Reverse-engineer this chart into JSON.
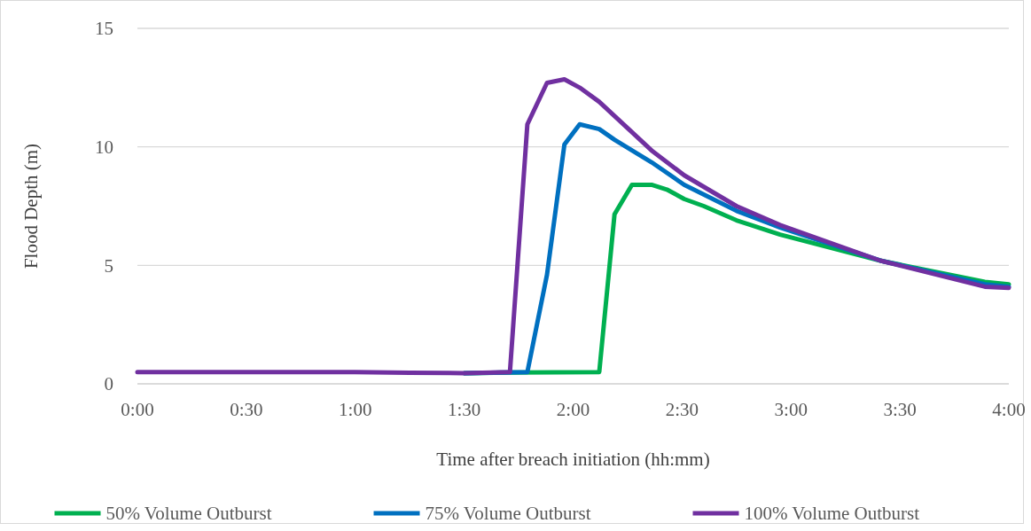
{
  "chart_data": {
    "type": "line",
    "xlabel": "Time after breach initiation (hh:mm)",
    "ylabel": "Flood Depth (m)",
    "xlim": [
      0,
      4
    ],
    "xticks": [
      {
        "value": 0,
        "label": "0:00"
      },
      {
        "value": 0.5,
        "label": "0:30"
      },
      {
        "value": 1,
        "label": "1:00"
      },
      {
        "value": 1.5,
        "label": "1:30"
      },
      {
        "value": 2,
        "label": "2:00"
      },
      {
        "value": 2.5,
        "label": "2:30"
      },
      {
        "value": 3,
        "label": "3:00"
      },
      {
        "value": 3.5,
        "label": "3:30"
      },
      {
        "value": 4,
        "label": "4:00"
      }
    ],
    "ylim": [
      0,
      15
    ],
    "yticks": [
      0,
      5,
      10,
      15
    ],
    "grid": "y",
    "legend": "bottom",
    "marker": "none",
    "line_style": "solid",
    "series": [
      {
        "name": "50% Volume Outburst",
        "color": "#00b050",
        "x": [
          1.5,
          1.71,
          2.12,
          2.19,
          2.27,
          2.36,
          2.43,
          2.51,
          2.6,
          2.75,
          2.95,
          3.41,
          3.89,
          4
        ],
        "values": [
          0.45,
          0.48,
          0.5,
          7.15,
          8.4,
          8.4,
          8.2,
          7.8,
          7.5,
          6.9,
          6.3,
          5.2,
          4.3,
          4.2
        ]
      },
      {
        "name": "75% Volume Outburst",
        "color": "#0070c0",
        "x": [
          1.5,
          1.79,
          1.88,
          1.96,
          2.03,
          2.12,
          2.19,
          2.36,
          2.51,
          2.75,
          2.95,
          3.41,
          3.89,
          4
        ],
        "values": [
          0.45,
          0.5,
          4.6,
          10.1,
          10.95,
          10.75,
          10.3,
          9.35,
          8.4,
          7.3,
          6.6,
          5.2,
          4.2,
          4.1
        ]
      },
      {
        "name": "100% Volume Outburst",
        "color": "#7030a0",
        "x": [
          0,
          0.5,
          1,
          1.25,
          1.5,
          1.71,
          1.79,
          1.88,
          1.96,
          2.03,
          2.12,
          2.36,
          2.51,
          2.75,
          2.95,
          3.41,
          3.89,
          4
        ],
        "values": [
          0.5,
          0.5,
          0.5,
          0.47,
          0.45,
          0.5,
          10.95,
          12.7,
          12.85,
          12.5,
          11.9,
          9.85,
          8.8,
          7.5,
          6.7,
          5.2,
          4.1,
          4.05
        ]
      }
    ]
  }
}
